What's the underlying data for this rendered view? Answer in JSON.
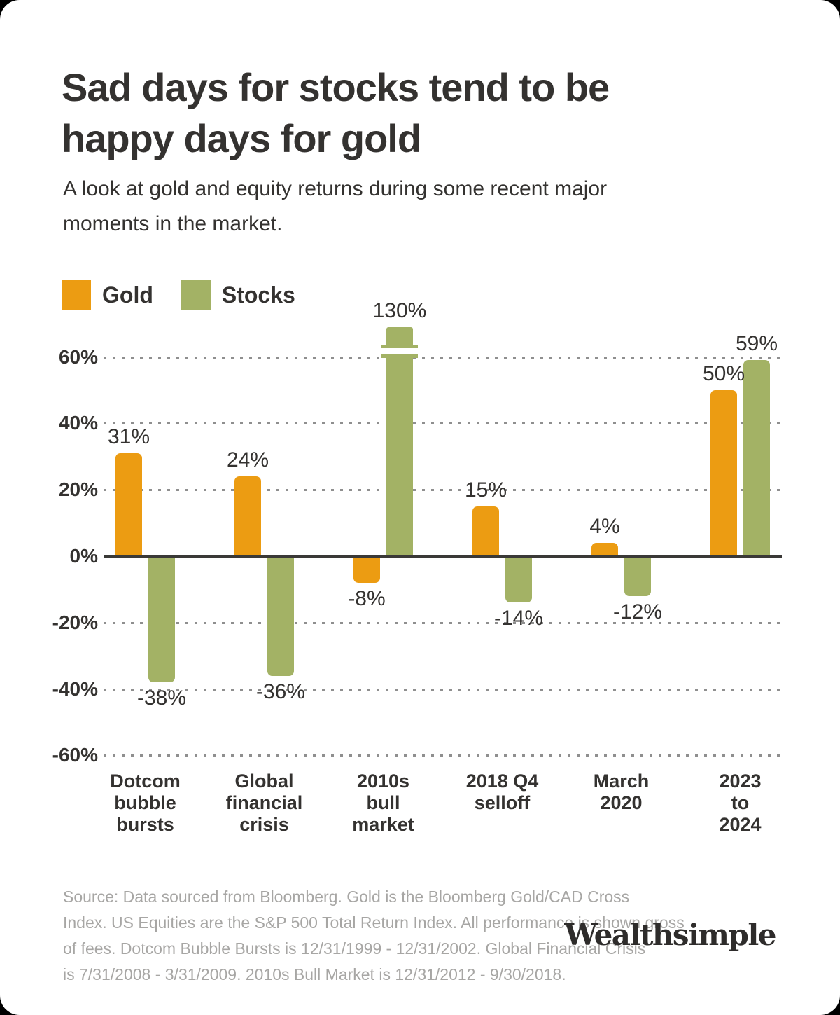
{
  "title": {
    "lines": [
      "Sad days for stocks tend to be",
      "happy days for gold"
    ]
  },
  "subtitle": {
    "lines": [
      "A look at gold and equity returns during some recent major",
      "moments in the market."
    ]
  },
  "legend": [
    {
      "label": "Gold",
      "color": "#EC9C12"
    },
    {
      "label": "Stocks",
      "color": "#A3B265"
    }
  ],
  "chart_data": {
    "type": "bar",
    "title": "Sad days for stocks tend to be happy days for gold",
    "subtitle": "A look at gold and equity returns during some recent major moments in the market.",
    "categories": [
      [
        "Dotcom",
        "bubble",
        "bursts"
      ],
      [
        "Global",
        "financial",
        "crisis"
      ],
      [
        "2010s",
        "bull",
        "market"
      ],
      [
        "2018 Q4",
        "selloff"
      ],
      [
        "March",
        "2020"
      ],
      [
        "2023",
        "to",
        "2024"
      ]
    ],
    "series": [
      {
        "name": "Gold",
        "color": "#EC9C12",
        "values": [
          31,
          24,
          -8,
          15,
          4,
          50
        ]
      },
      {
        "name": "Stocks",
        "color": "#A3B265",
        "values": [
          -38,
          -36,
          130,
          -14,
          -12,
          59
        ]
      }
    ],
    "data_label_format": "{value}%",
    "ytick_labels": [
      "60%",
      "40%",
      "20%",
      "0%",
      "-20%",
      "-40%",
      "-60%"
    ],
    "grid_pcts": [
      60,
      40,
      20,
      0,
      -20,
      -40,
      -60
    ],
    "ylim": [
      -60,
      60
    ],
    "axis_break": {
      "series": "Stocks",
      "category": "2010s bull market",
      "value": 130,
      "note": "bar drawn with axis break above 60%"
    },
    "grid": "dotted horizontal",
    "legend_position": "top-left"
  },
  "footer": {
    "source_lines": [
      "Source: Data sourced from Bloomberg. Gold is the Bloomberg Gold/CAD Cross",
      "Index. US Equities are the S&P 500 Total Return Index. All performance is shown gross",
      "of fees. Dotcom Bubble Bursts is 12/31/1999 - 12/31/2002. Global Financial Crisis",
      "is 7/31/2008 - 3/31/2009. 2010s Bull Market is 12/31/2012 - 9/30/2018."
    ],
    "brand": "Wealthsimple"
  }
}
